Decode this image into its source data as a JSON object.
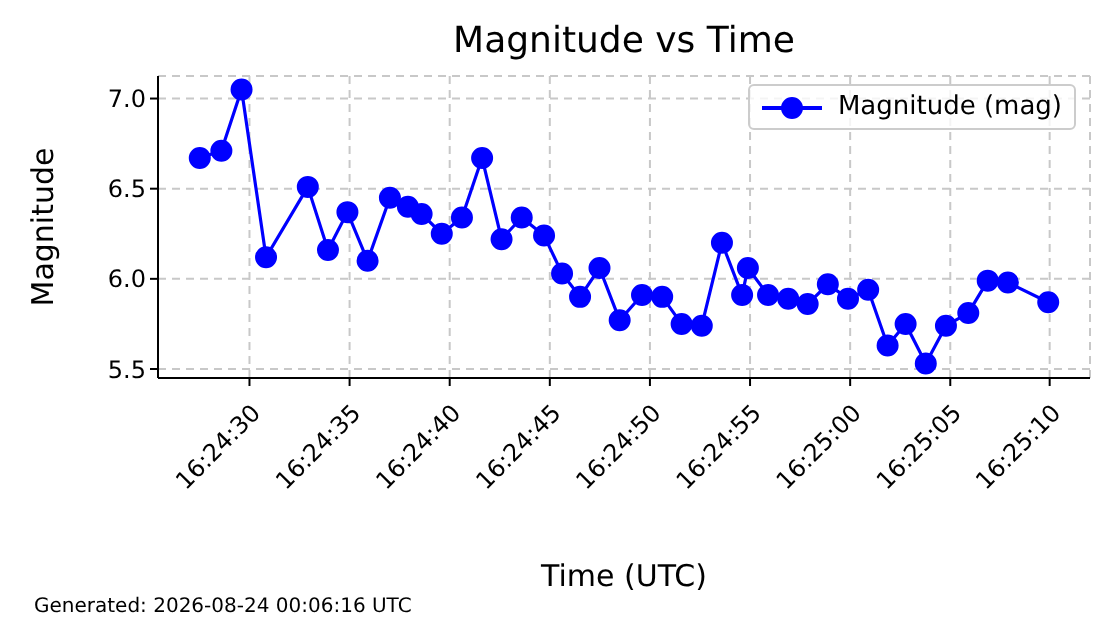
{
  "chart_data": {
    "type": "line",
    "title": "Magnitude vs Time",
    "xlabel": "Time (UTC)",
    "ylabel": "Magnitude",
    "annotations": [
      "Generated: 2026-08-24 00:06:16 UTC"
    ],
    "x": [
      16.40764,
      16.40794,
      16.40822,
      16.40856,
      16.40914,
      16.40942,
      16.40969,
      16.40997,
      16.41028,
      16.41053,
      16.41072,
      16.411,
      16.41128,
      16.41156,
      16.41183,
      16.41211,
      16.41242,
      16.41267,
      16.41292,
      16.41319,
      16.41347,
      16.41378,
      16.41406,
      16.41433,
      16.41461,
      16.41489,
      16.41517,
      16.41525,
      16.41553,
      16.41581,
      16.41608,
      16.41636,
      16.41664,
      16.41692,
      16.41719,
      16.41744,
      16.41772,
      16.418,
      16.41831,
      16.41858,
      16.41886,
      16.41942
    ],
    "series": [
      {
        "name": "Magnitude (mag)",
        "color": "#0000ff",
        "values": [
          6.67,
          6.71,
          7.05,
          6.12,
          6.51,
          6.16,
          6.37,
          6.1,
          6.45,
          6.4,
          6.36,
          6.25,
          6.34,
          6.67,
          6.22,
          6.34,
          6.24,
          6.03,
          5.9,
          6.06,
          5.77,
          5.91,
          5.9,
          5.75,
          5.74,
          6.2,
          5.91,
          6.06,
          5.91,
          5.89,
          5.86,
          5.97,
          5.89,
          5.94,
          5.63,
          5.75,
          5.53,
          5.74,
          5.81,
          5.99,
          5.98,
          5.87
        ]
      }
    ],
    "xlim": [
      16.40706,
      16.42
    ],
    "xticks": [
      {
        "value": 16.40833,
        "label": "16:24:30"
      },
      {
        "value": 16.40972,
        "label": "16:24:35"
      },
      {
        "value": 16.41111,
        "label": "16:24:40"
      },
      {
        "value": 16.4125,
        "label": "16:24:45"
      },
      {
        "value": 16.41389,
        "label": "16:24:50"
      },
      {
        "value": 16.41528,
        "label": "16:24:55"
      },
      {
        "value": 16.41667,
        "label": "16:25:00"
      },
      {
        "value": 16.41806,
        "label": "16:25:05"
      },
      {
        "value": 16.41944,
        "label": "16:25:10"
      }
    ],
    "ylim": [
      5.45,
      7.125
    ],
    "yticks": [
      5.5,
      {
        "value": 6,
        "label": "6.0"
      },
      6.5,
      {
        "value": 7,
        "label": "7.0"
      }
    ],
    "grid": true,
    "legend": "top right",
    "marker": "circle",
    "line_style": "solid"
  }
}
